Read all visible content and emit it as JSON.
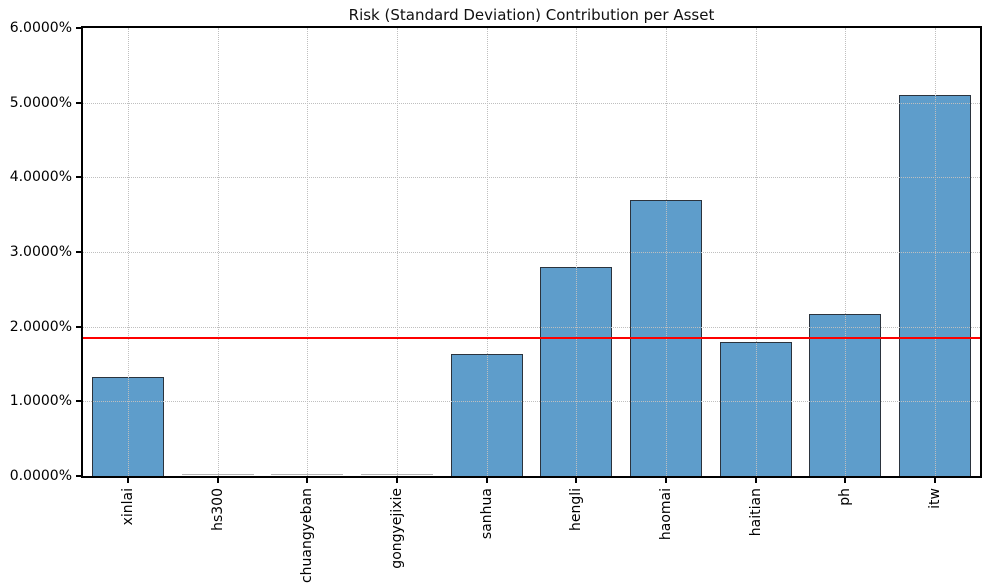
{
  "chart_data": {
    "type": "bar",
    "title": "Risk (Standard Deviation) Contribution per Asset",
    "categories": [
      "xinlai",
      "hs300",
      "chuangyeban",
      "gongyejixie",
      "sanhua",
      "hengli",
      "haomai",
      "haitian",
      "ph",
      "itw"
    ],
    "values": [
      1.33,
      0.0,
      0.0,
      0.0,
      1.63,
      2.8,
      3.7,
      1.8,
      2.17,
      5.1
    ],
    "value_unit": "%",
    "xlabel": "",
    "ylabel": "",
    "ylim": [
      0,
      6
    ],
    "ytick_labels": [
      "0.0000%",
      "1.0000%",
      "2.0000%",
      "3.0000%",
      "4.0000%",
      "5.0000%",
      "6.0000%"
    ],
    "legend": "none",
    "grid": {
      "style": "dotted",
      "axes": "both",
      "color": "#bfbfbf",
      "drawn_over_bars": true
    },
    "reference_line": {
      "value": 1.85,
      "color": "#ff0000",
      "style": "solid"
    },
    "colors": {
      "bar_fill": "#5e9dcb",
      "bar_edge": "#2b333d",
      "near_zero_bar": "#b5b5b5",
      "axis": "#000000",
      "title_text": "#111111",
      "background": "#ffffff"
    }
  }
}
